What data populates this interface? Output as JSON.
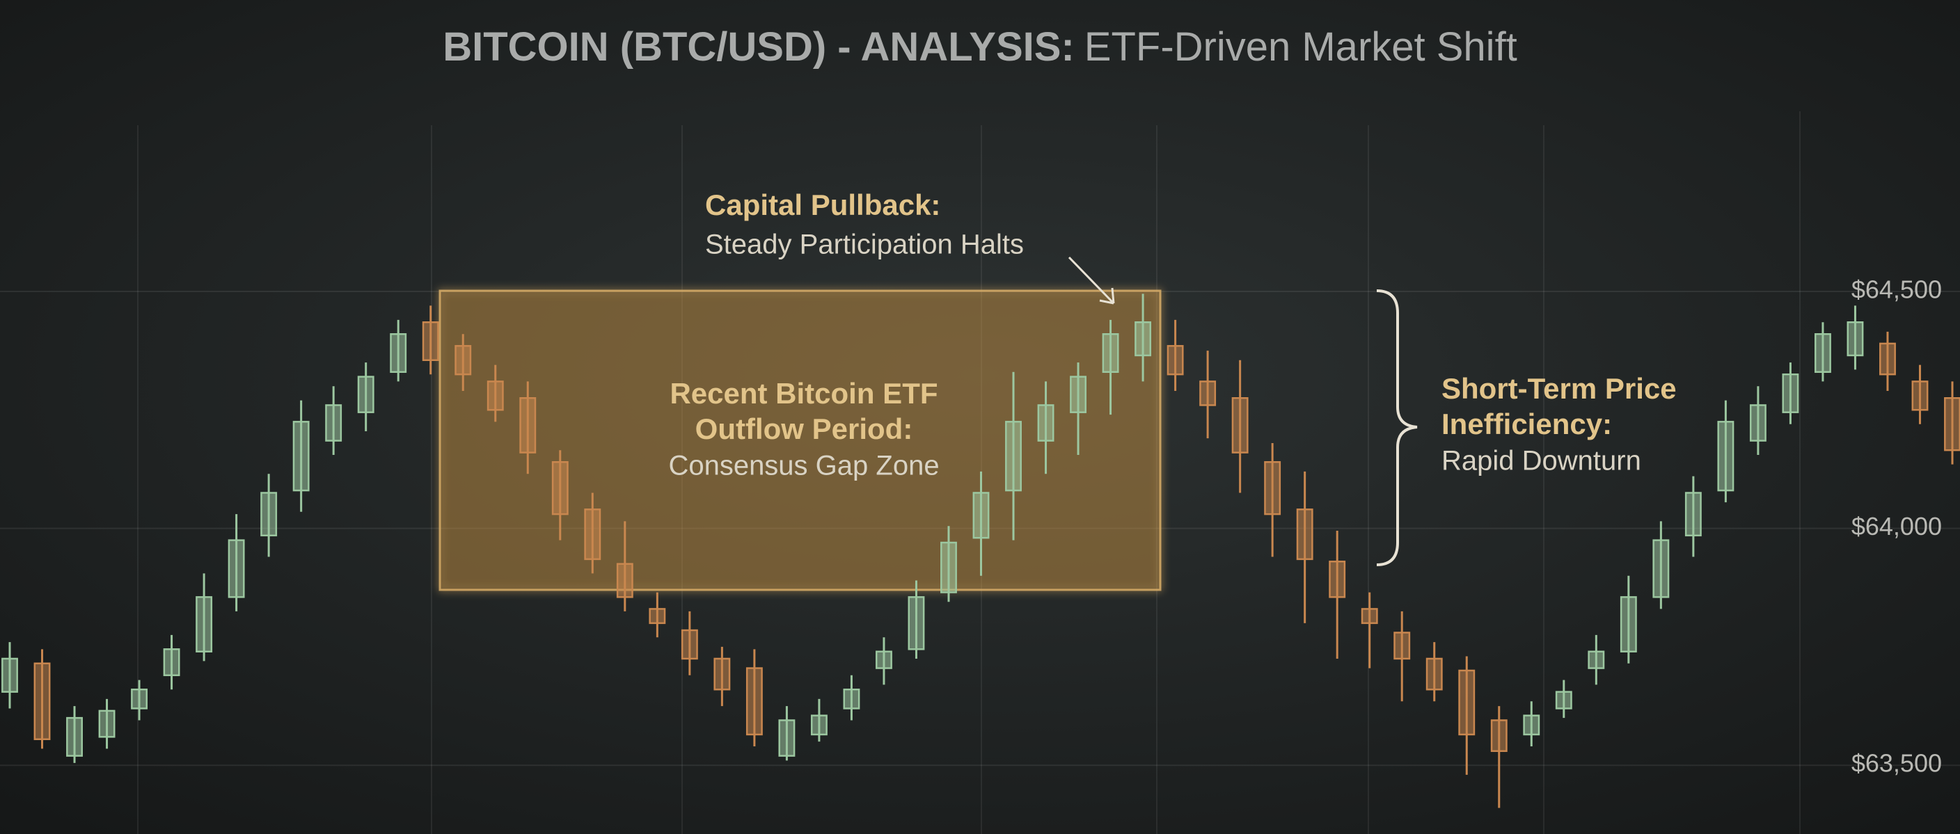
{
  "chart_data": {
    "type": "candlestick",
    "title": "BITCOIN (BTC/USD) - ANALYSIS:",
    "subtitle": "ETF-Driven Market Shift",
    "annotations": [
      {
        "heading": [
          "Capital Pullback:"
        ],
        "text": "Steady Participation Halts"
      },
      {
        "heading": [
          "Recent Bitcoin ETF",
          "Outflow Period:"
        ],
        "text": "Consensus Gap Zone"
      },
      {
        "heading": [
          "Short-Term Price",
          "Inefficiency:"
        ],
        "text": "Rapid Downturn"
      }
    ],
    "open": [
      63655,
      63715,
      63520,
      63560,
      63620,
      63690,
      63740,
      63855,
      63985,
      64080,
      64185,
      64245,
      64330,
      64435,
      64385,
      64310,
      64275,
      64140,
      64040,
      63925,
      63830,
      63785,
      63725,
      63705,
      63520,
      63565,
      63620,
      63705,
      63745,
      63865,
      63980,
      64080,
      64185,
      64245,
      64330,
      64365,
      64385,
      64310,
      64275,
      64140,
      64040,
      63930,
      63830,
      63780,
      63725,
      63700,
      63595,
      63565,
      63620,
      63705,
      63740,
      63855,
      63985,
      64080,
      64185,
      64245,
      64330,
      64365,
      64390,
      64310,
      64275
    ],
    "high": [
      63760,
      63745,
      63625,
      63640,
      63680,
      63775,
      63905,
      64030,
      64115,
      64270,
      64300,
      64350,
      64440,
      64470,
      64410,
      64345,
      64310,
      64165,
      64075,
      64015,
      63865,
      63825,
      63750,
      63745,
      63625,
      63640,
      63690,
      63770,
      63890,
      64005,
      64120,
      64330,
      64310,
      64350,
      64440,
      64495,
      64440,
      64375,
      64355,
      64180,
      64120,
      63995,
      63865,
      63825,
      63760,
      63730,
      63625,
      63635,
      63680,
      63775,
      63900,
      64015,
      64110,
      64270,
      64300,
      64350,
      64435,
      64470,
      64415,
      64345,
      64310
    ],
    "low": [
      63620,
      63535,
      63505,
      63535,
      63595,
      63660,
      63720,
      63825,
      63940,
      64035,
      64155,
      64205,
      64310,
      64325,
      64290,
      64225,
      64115,
      63975,
      63905,
      63825,
      63770,
      63690,
      63625,
      63540,
      63510,
      63550,
      63595,
      63670,
      63725,
      63845,
      63900,
      63975,
      64115,
      64155,
      64240,
      64310,
      64290,
      64190,
      64075,
      63940,
      63800,
      63725,
      63705,
      63635,
      63635,
      63480,
      63410,
      63540,
      63600,
      63670,
      63715,
      63830,
      63940,
      64055,
      64155,
      64220,
      64310,
      64335,
      64290,
      64220,
      64135
    ],
    "close": [
      63725,
      63555,
      63600,
      63615,
      63660,
      63745,
      63855,
      63975,
      64075,
      64225,
      64260,
      64320,
      64410,
      64355,
      64325,
      64250,
      64160,
      64030,
      63935,
      63855,
      63800,
      63725,
      63660,
      63565,
      63595,
      63605,
      63660,
      63740,
      63855,
      63970,
      64075,
      64225,
      64260,
      64320,
      64410,
      64435,
      64325,
      64260,
      64160,
      64030,
      63935,
      63855,
      63800,
      63725,
      63660,
      63565,
      63530,
      63605,
      63655,
      63740,
      63855,
      63975,
      64075,
      64225,
      64260,
      64325,
      64410,
      64435,
      64325,
      64250,
      64165
    ],
    "up_color": "#9cc7a0",
    "down_color": "#c9874f",
    "ylim": [
      63355,
      65115
    ],
    "yticks": [
      {
        "value": 64500,
        "label": "$64,500"
      },
      {
        "value": 64000,
        "label": "$64,000"
      },
      {
        "value": 63500,
        "label": "$63,500"
      }
    ],
    "grid": true
  }
}
